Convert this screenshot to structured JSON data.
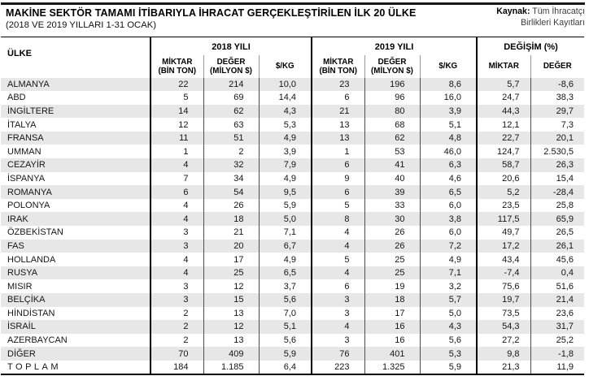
{
  "header": {
    "title": "MAKİNE SEKTÖR TAMAMI İTİBARIYLA İHRACAT GERÇEKLEŞTİRİLEN İLK 20 ÜLKE",
    "subtitle": "(2018 VE 2019 YILLARI 1-31 OCAK)",
    "source_label": "Kaynak:",
    "source_line1": "Tüm İhracatçı",
    "source_line2": "Birlikleri Kayıtları"
  },
  "table": {
    "country_header": "ÜLKE",
    "groups": [
      "2018 YILI",
      "2019 YILI",
      "DEĞİŞİM (%)"
    ],
    "sub": [
      {
        "l1": "MİKTAR",
        "l2": "(BİN TON)"
      },
      {
        "l1": "DEĞER",
        "l2": "(MİLYON $)"
      },
      {
        "l1": "$/KG",
        "l2": ""
      },
      {
        "l1": "MİKTAR",
        "l2": "(BİN TON)"
      },
      {
        "l1": "DEĞER",
        "l2": "(MİLYON $)"
      },
      {
        "l1": "$/KG",
        "l2": ""
      },
      {
        "l1": "MİKTAR",
        "l2": ""
      },
      {
        "l1": "DEĞER",
        "l2": ""
      }
    ]
  },
  "colors": {
    "stripe": "#e7e7e7",
    "rule": "#181818",
    "group_border": "#000000",
    "thin_border": "#4d4d4d"
  },
  "chart_data": {
    "type": "table",
    "title": "MAKİNE SEKTÖR TAMAMI İTİBARIYLA İHRACAT GERÇEKLEŞTİRİLEN İLK 20 ÜLKE",
    "subtitle": "(2018 VE 2019 YILLARI 1-31 OCAK)",
    "source": "Kaynak: Tüm İhracatçı Birlikleri Kayıtları",
    "columns": [
      "ÜLKE",
      "2018 YILI MİKTAR (BİN TON)",
      "2018 YILI DEĞER (MİLYON $)",
      "2018 YILI $/KG",
      "2019 YILI MİKTAR (BİN TON)",
      "2019 YILI DEĞER (MİLYON $)",
      "2019 YILI $/KG",
      "DEĞİŞİM (%) MİKTAR",
      "DEĞİŞİM (%) DEĞER"
    ],
    "rows": [
      [
        "ALMANYA",
        "22",
        "214",
        "10,0",
        "23",
        "196",
        "8,6",
        "5,7",
        "-8,6"
      ],
      [
        "ABD",
        "5",
        "69",
        "14,4",
        "6",
        "96",
        "16,0",
        "24,7",
        "38,3"
      ],
      [
        "İNGİLTERE",
        "14",
        "62",
        "4,3",
        "21",
        "80",
        "3,9",
        "44,3",
        "29,7"
      ],
      [
        "İTALYA",
        "12",
        "63",
        "5,3",
        "13",
        "68",
        "5,1",
        "12,1",
        "7,3"
      ],
      [
        "FRANSA",
        "11",
        "51",
        "4,9",
        "13",
        "62",
        "4,8",
        "22,7",
        "20,1"
      ],
      [
        "UMMAN",
        "1",
        "2",
        "3,9",
        "1",
        "53",
        "46,0",
        "124,7",
        "2.530,5"
      ],
      [
        "CEZAYİR",
        "4",
        "32",
        "7,9",
        "6",
        "41",
        "6,3",
        "58,7",
        "26,3"
      ],
      [
        "İSPANYA",
        "7",
        "34",
        "4,9",
        "9",
        "40",
        "4,6",
        "20,6",
        "15,4"
      ],
      [
        "ROMANYA",
        "6",
        "54",
        "9,5",
        "6",
        "39",
        "6,5",
        "5,2",
        "-28,4"
      ],
      [
        "POLONYA",
        "4",
        "26",
        "5,9",
        "5",
        "33",
        "6,0",
        "23,5",
        "25,8"
      ],
      [
        "IRAK",
        "4",
        "18",
        "5,0",
        "8",
        "30",
        "3,8",
        "117,5",
        "65,9"
      ],
      [
        "ÖZBEKİSTAN",
        "3",
        "21",
        "7,1",
        "4",
        "26",
        "6,0",
        "49,7",
        "26,5"
      ],
      [
        "FAS",
        "3",
        "20",
        "6,7",
        "4",
        "26",
        "7,2",
        "17,2",
        "26,1"
      ],
      [
        "HOLLANDA",
        "4",
        "17",
        "4,9",
        "5",
        "25",
        "4,9",
        "43,4",
        "45,6"
      ],
      [
        "RUSYA",
        "4",
        "25",
        "6,5",
        "4",
        "25",
        "7,1",
        "-7,4",
        "0,4"
      ],
      [
        "MISIR",
        "3",
        "12",
        "3,7",
        "6",
        "19",
        "3,2",
        "75,6",
        "51,6"
      ],
      [
        "BELÇİKA",
        "3",
        "15",
        "5,6",
        "3",
        "18",
        "5,7",
        "19,7",
        "21,4"
      ],
      [
        "HİNDİSTAN",
        "2",
        "13",
        "7,0",
        "3",
        "17",
        "5,0",
        "73,5",
        "23,6"
      ],
      [
        "İSRAİL",
        "2",
        "12",
        "5,1",
        "4",
        "16",
        "4,3",
        "54,3",
        "31,7"
      ],
      [
        "AZERBAYCAN",
        "2",
        "13",
        "5,6",
        "3",
        "16",
        "5,6",
        "27,2",
        "25,2"
      ],
      [
        "DİĞER",
        "70",
        "409",
        "5,9",
        "76",
        "401",
        "5,3",
        "9,8",
        "-1,8"
      ],
      [
        "TOPLAM",
        "184",
        "1.185",
        "6,4",
        "223",
        "1.325",
        "5,9",
        "21,3",
        "11,9"
      ]
    ]
  }
}
